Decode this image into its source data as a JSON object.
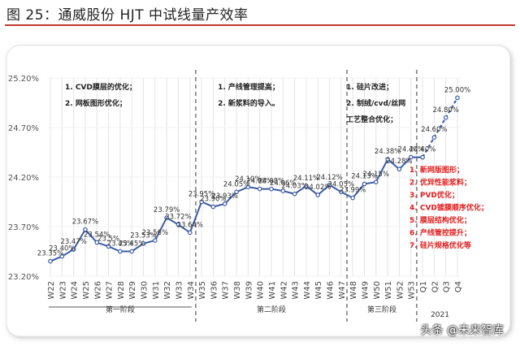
{
  "figure_title": "图 25：通威股份 HJT 中试线量产效率",
  "watermark": "头条 @未来智库",
  "chart_data": {
    "type": "line",
    "ylim": [
      23.2,
      25.2
    ],
    "y_ticks": [
      "25.20%",
      "24.70%",
      "24.20%",
      "23.70%",
      "23.20%"
    ],
    "y_tick_values": [
      25.2,
      24.7,
      24.2,
      23.7,
      23.2
    ],
    "categories": [
      "W22",
      "W23",
      "W24",
      "W25",
      "W26",
      "W27",
      "W28",
      "W29",
      "W30",
      "W31",
      "W32",
      "W33",
      "W34",
      "W35",
      "W36",
      "W37",
      "W38",
      "W39",
      "W40",
      "W41",
      "W42",
      "W43",
      "W44",
      "W45",
      "W46",
      "W47",
      "W48",
      "W49",
      "W50",
      "W51",
      "W52",
      "W53",
      "Q1",
      "Q2",
      "Q3",
      "Q4"
    ],
    "series": [
      {
        "style": "solid",
        "color": "#3b5ba5",
        "points": [
          {
            "x": "W22",
            "y": 23.35,
            "label": "23.35%"
          },
          {
            "x": "W23",
            "y": 23.4,
            "label": "23.40%"
          },
          {
            "x": "W24",
            "y": 23.47,
            "label": "23.47%"
          },
          {
            "x": "W25",
            "y": 23.67,
            "label": "23.67%"
          },
          {
            "x": "W26",
            "y": 23.54,
            "label": "23.54%"
          },
          {
            "x": "W27",
            "y": 23.5,
            "label": "23.5%"
          },
          {
            "x": "W28",
            "y": 23.45,
            "label": "23.45%"
          },
          {
            "x": "W29",
            "y": 23.45,
            "label": "23.45%"
          },
          {
            "x": "W30",
            "y": 23.53,
            "label": "23.53%"
          },
          {
            "x": "W31",
            "y": 23.56,
            "label": "23.56%"
          },
          {
            "x": "W32",
            "y": 23.79,
            "label": "23.79%"
          },
          {
            "x": "W33",
            "y": 23.72,
            "label": "23.72%"
          },
          {
            "x": "W34",
            "y": 23.64,
            "label": "23.64%"
          },
          {
            "x": "W35",
            "y": 23.95,
            "label": "23.95%"
          },
          {
            "x": "W36",
            "y": 23.9,
            "label": "23.90%"
          },
          {
            "x": "W37",
            "y": 23.93,
            "label": "23.93%"
          },
          {
            "x": "W38",
            "y": 24.05,
            "label": "24.05%"
          },
          {
            "x": "W39",
            "y": 24.1,
            "label": "24.10%"
          },
          {
            "x": "W40",
            "y": 24.08,
            "label": "24.08%"
          },
          {
            "x": "W41",
            "y": 24.08,
            "label": "24.08%"
          },
          {
            "x": "W42",
            "y": 24.06,
            "label": "24.06%"
          },
          {
            "x": "W43",
            "y": 24.03,
            "label": "24.03%"
          },
          {
            "x": "W44",
            "y": 24.11,
            "label": "24.11%"
          },
          {
            "x": "W45",
            "y": 24.02,
            "label": "24.02%"
          },
          {
            "x": "W46",
            "y": 24.12,
            "label": "24.12%"
          },
          {
            "x": "W47",
            "y": 24.05,
            "label": "24.05%"
          },
          {
            "x": "W48",
            "y": 23.99,
            "label": "23.99%"
          },
          {
            "x": "W49",
            "y": 24.13,
            "label": "24.13%"
          },
          {
            "x": "W50",
            "y": 24.15,
            "label": "24.15%"
          },
          {
            "x": "W51",
            "y": 24.38,
            "label": "24.38%"
          },
          {
            "x": "W52",
            "y": 24.28,
            "label": "24.28%"
          },
          {
            "x": "W53",
            "y": 24.4,
            "label": "24.40%"
          },
          {
            "x": "Q1",
            "y": 24.4,
            "label": "24.40%"
          }
        ]
      },
      {
        "style": "dashed",
        "color": "#3b5ba5",
        "points": [
          {
            "x": "Q1",
            "y": 24.4,
            "label": ""
          },
          {
            "x": "Q2",
            "y": 24.6,
            "label": "24.60%"
          },
          {
            "x": "Q3",
            "y": 24.8,
            "label": "24.80%"
          },
          {
            "x": "Q4",
            "y": 25.0,
            "label": "25.00%"
          }
        ]
      }
    ],
    "stages": [
      {
        "name": "第一阶段",
        "from": "W22",
        "to": "W34"
      },
      {
        "name": "第二阶段",
        "from": "W35",
        "to": "W47"
      },
      {
        "name": "第三阶段",
        "from": "W48",
        "to": "W53"
      },
      {
        "name": "2021",
        "from": "Q1",
        "to": "Q4"
      }
    ],
    "annotations": [
      {
        "stage": "第一阶段",
        "color": "#222222",
        "items": [
          "1.  CVD膜层的优化；",
          "2.  网板图形优化；"
        ]
      },
      {
        "stage": "第二阶段",
        "color": "#222222",
        "items": [
          "1.  产线管理提高；",
          "2.  新浆料的导入。"
        ]
      },
      {
        "stage": "第三阶段",
        "color": "#222222",
        "items": [
          "1.  硅片改进；",
          "2.  制绒/cvd/丝网",
          "工艺整合优化；"
        ]
      },
      {
        "stage": "2021",
        "color": "#e02020",
        "items": [
          "1.  新网版图形；",
          "2.  优异性能浆料；",
          "3.  PVD优化；",
          "4.  CVD镀膜顺序优化；",
          "5.  膜层结构优化；",
          "6.  产线管控提升；",
          "7.  硅片规格优化等"
        ]
      }
    ]
  }
}
